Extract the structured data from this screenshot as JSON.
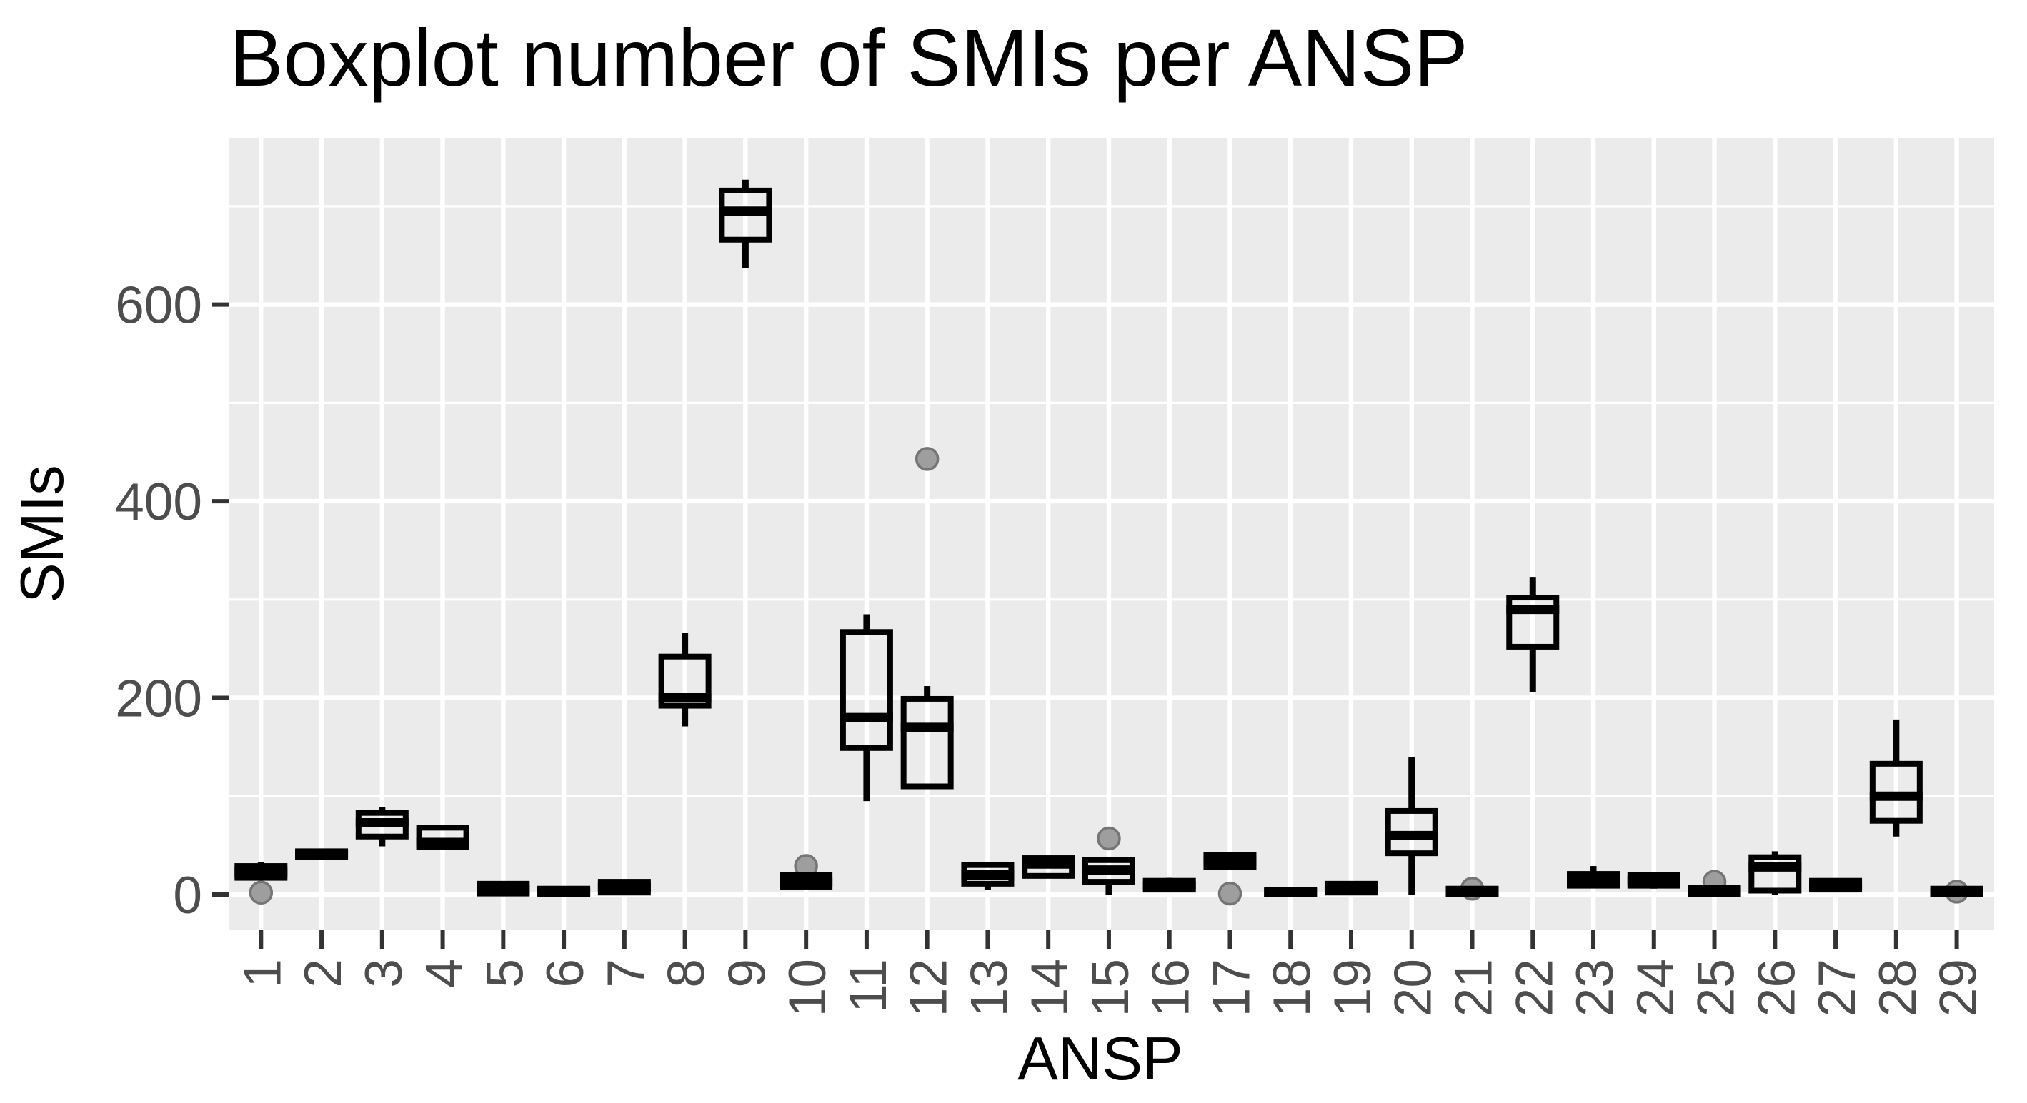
{
  "chart_data": {
    "type": "boxplot",
    "title": "Boxplot number of SMIs per ANSP",
    "xlabel": "ANSP",
    "ylabel": "SMIs",
    "x_tick_labels": [
      "1",
      "2",
      "3",
      "4",
      "5",
      "6",
      "7",
      "8",
      "9",
      "10",
      "11",
      "12",
      "13",
      "14",
      "15",
      "16",
      "17",
      "18",
      "19",
      "20",
      "21",
      "22",
      "23",
      "24",
      "25",
      "26",
      "27",
      "28",
      "29"
    ],
    "y_tick_labels": [
      "0",
      "200",
      "400",
      "600"
    ],
    "y_major_ticks": [
      0,
      200,
      400,
      600
    ],
    "y_minor_ticks": [
      100,
      300,
      500,
      700
    ],
    "ylim": [
      -36,
      770
    ],
    "grid": "on",
    "legend": "none",
    "categories": [
      "1",
      "2",
      "3",
      "4",
      "5",
      "6",
      "7",
      "8",
      "9",
      "10",
      "11",
      "12",
      "13",
      "14",
      "15",
      "16",
      "17",
      "18",
      "19",
      "20",
      "21",
      "22",
      "23",
      "24",
      "25",
      "26",
      "27",
      "28",
      "29"
    ],
    "boxes": [
      {
        "category": "1",
        "min": 17,
        "q1": 17,
        "median": 23,
        "q3": 29,
        "max": 33,
        "outliers": [
          2
        ]
      },
      {
        "category": "2",
        "min": 36,
        "q1": 38,
        "median": 41,
        "q3": 44,
        "max": 46,
        "outliers": []
      },
      {
        "category": "3",
        "min": 49,
        "q1": 59,
        "median": 73,
        "q3": 83,
        "max": 89,
        "outliers": []
      },
      {
        "category": "4",
        "min": 47,
        "q1": 48,
        "median": 53,
        "q3": 68,
        "max": 68,
        "outliers": []
      },
      {
        "category": "5",
        "min": 0,
        "q1": 1,
        "median": 5,
        "q3": 11,
        "max": 13,
        "outliers": []
      },
      {
        "category": "6",
        "min": 0,
        "q1": 0,
        "median": 3,
        "q3": 6,
        "max": 7,
        "outliers": []
      },
      {
        "category": "7",
        "min": 0,
        "q1": 2,
        "median": 8,
        "q3": 13,
        "max": 15,
        "outliers": []
      },
      {
        "category": "8",
        "min": 171,
        "q1": 192,
        "median": 200,
        "q3": 242,
        "max": 266,
        "outliers": []
      },
      {
        "category": "9",
        "min": 637,
        "q1": 666,
        "median": 695,
        "q3": 716,
        "max": 727,
        "outliers": []
      },
      {
        "category": "10",
        "min": 6,
        "q1": 8,
        "median": 13,
        "q3": 20,
        "max": 20,
        "outliers": [
          29
        ]
      },
      {
        "category": "11",
        "min": 95,
        "q1": 149,
        "median": 180,
        "q3": 267,
        "max": 285,
        "outliers": []
      },
      {
        "category": "12",
        "min": 108,
        "q1": 110,
        "median": 170,
        "q3": 199,
        "max": 212,
        "outliers": [
          443
        ]
      },
      {
        "category": "13",
        "min": 5,
        "q1": 11,
        "median": 20,
        "q3": 30,
        "max": 30,
        "outliers": []
      },
      {
        "category": "14",
        "min": 19,
        "q1": 19,
        "median": 31,
        "q3": 37,
        "max": 37,
        "outliers": []
      },
      {
        "category": "15",
        "min": 0,
        "q1": 13,
        "median": 25,
        "q3": 35,
        "max": 35,
        "outliers": [
          57
        ]
      },
      {
        "category": "16",
        "min": 4,
        "q1": 5,
        "median": 9,
        "q3": 14,
        "max": 17,
        "outliers": []
      },
      {
        "category": "17",
        "min": 27,
        "q1": 28,
        "median": 34,
        "q3": 40,
        "max": 41,
        "outliers": [
          1
        ]
      },
      {
        "category": "18",
        "min": 0,
        "q1": 0,
        "median": 2,
        "q3": 5,
        "max": 7,
        "outliers": []
      },
      {
        "category": "19",
        "min": 1,
        "q1": 2,
        "median": 6,
        "q3": 11,
        "max": 12,
        "outliers": []
      },
      {
        "category": "20",
        "min": 0,
        "q1": 42,
        "median": 60,
        "q3": 85,
        "max": 140,
        "outliers": []
      },
      {
        "category": "21",
        "min": 0,
        "q1": 0,
        "median": 3,
        "q3": 6,
        "max": 7,
        "outliers": [
          6
        ]
      },
      {
        "category": "22",
        "min": 206,
        "q1": 252,
        "median": 290,
        "q3": 302,
        "max": 323,
        "outliers": []
      },
      {
        "category": "23",
        "min": 8,
        "q1": 9,
        "median": 15,
        "q3": 21,
        "max": 29,
        "outliers": []
      },
      {
        "category": "24",
        "min": 6,
        "q1": 9,
        "median": 14,
        "q3": 20,
        "max": 20,
        "outliers": []
      },
      {
        "category": "25",
        "min": 0,
        "q1": 0,
        "median": 3,
        "q3": 7,
        "max": 8,
        "outliers": [
          13
        ]
      },
      {
        "category": "26",
        "min": 0,
        "q1": 4,
        "median": 28,
        "q3": 38,
        "max": 44,
        "outliers": []
      },
      {
        "category": "27",
        "min": 4,
        "q1": 5,
        "median": 9,
        "q3": 14,
        "max": 15,
        "outliers": []
      },
      {
        "category": "28",
        "min": 59,
        "q1": 75,
        "median": 100,
        "q3": 133,
        "max": 178,
        "outliers": []
      },
      {
        "category": "29",
        "min": 0,
        "q1": 0,
        "median": 2,
        "q3": 6,
        "max": 7,
        "outliers": [
          3
        ]
      }
    ],
    "colors": {
      "panel_background": "#EBEBEB",
      "gridline": "#FFFFFF",
      "box_stroke": "#000000",
      "box_fill": "transparent",
      "outlier_fill": "#9E9E9E",
      "outlier_stroke": "#757575",
      "axis_tick": "#333333",
      "tick_label": "#4D4D4D",
      "title": "#000000"
    }
  }
}
